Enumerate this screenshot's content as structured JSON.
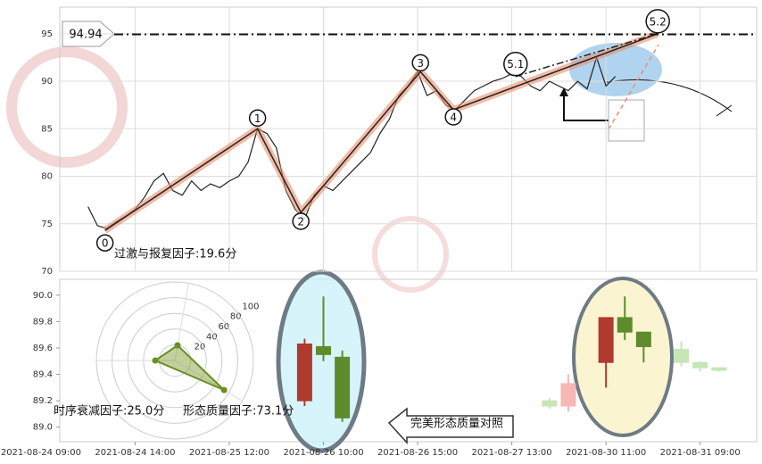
{
  "chart_data": [
    {
      "type": "line",
      "color": "#222222",
      "x": [
        5,
        6,
        7,
        8,
        9,
        10,
        11,
        12,
        13,
        14,
        15,
        16,
        17,
        18,
        19,
        20,
        21,
        22,
        23,
        24,
        25,
        26,
        27,
        28,
        29,
        30,
        31,
        32,
        33,
        34,
        35,
        36,
        37,
        38,
        39,
        40,
        41,
        42,
        43,
        44,
        45,
        46,
        47,
        48,
        49,
        50,
        51,
        52,
        53,
        54,
        55,
        56,
        57,
        58,
        59,
        60,
        61
      ],
      "values": [
        76.8,
        74.8,
        74.5,
        75.2,
        75.8,
        76.5,
        77.8,
        79.5,
        80.3,
        78.5,
        78.0,
        79.5,
        78.5,
        79.2,
        78.8,
        79.5,
        80.0,
        81.5,
        85.0,
        84.5,
        83.0,
        78.5,
        76.5,
        75.5,
        78.0,
        79.0,
        78.5,
        79.5,
        80.5,
        81.5,
        82.5,
        84.5,
        86.0,
        88.5,
        89.5,
        91.0,
        88.5,
        89.0,
        87.5,
        87.0,
        88.0,
        89.0,
        89.5,
        90.0,
        90.3,
        90.8,
        90.5,
        89.5,
        89.0,
        90.0,
        89.5,
        89.0,
        90.0,
        89.2,
        92.5,
        89.5,
        90.5
      ],
      "xlim": [
        2,
        76
      ],
      "ylim": [
        70,
        97.8
      ],
      "yticks": [
        70,
        75,
        80,
        85,
        90,
        95
      ],
      "grid": true,
      "hline": 94.94,
      "waves": {
        "labels": [
          "0",
          "1",
          "2",
          "3",
          "4",
          "5.1",
          "5.2"
        ],
        "x": [
          6.8,
          23,
          27.6,
          40.3,
          43.8,
          50.4,
          65.5
        ],
        "y": [
          74.3,
          85.0,
          76.2,
          91.0,
          87.0,
          90.5,
          95.0
        ],
        "color": "#e8906c"
      }
    },
    {
      "type": "candlestick",
      "x": [
        28,
        30,
        32,
        54,
        56,
        60,
        62,
        64,
        68,
        70,
        72
      ],
      "open": [
        89.2,
        89.55,
        89.53,
        89.16,
        89.16,
        89.49,
        89.72,
        89.61,
        89.49,
        89.45,
        89.43
      ],
      "high": [
        89.67,
        89.99,
        89.58,
        89.22,
        89.4,
        89.83,
        89.99,
        89.72,
        89.65,
        89.5,
        89.45
      ],
      "low": [
        89.16,
        89.5,
        89.04,
        89.14,
        89.12,
        89.3,
        89.66,
        89.49,
        89.46,
        89.42,
        89.42
      ],
      "close": [
        89.63,
        89.61,
        89.07,
        89.2,
        89.33,
        89.83,
        89.83,
        89.72,
        89.59,
        89.49,
        89.45
      ],
      "colors": [
        "#b03a2e",
        "#5e8c2c",
        "#5e8c2c",
        "#c6e6b6",
        "#f5b8b4",
        "#b03a2e",
        "#5e8c2c",
        "#5e8c2c",
        "#c6e6b6",
        "#c6e6b6",
        "#c6e6b6"
      ],
      "xlim": [
        2,
        76
      ],
      "ylim": [
        88.89,
        90.12
      ],
      "yticks": [
        {
          "value": 89.0,
          "label": "89.0"
        },
        {
          "value": 89.2,
          "label": "89.2"
        },
        {
          "value": 89.4,
          "label": "89.4"
        },
        {
          "value": 89.6,
          "label": "89.6"
        },
        {
          "value": 89.8,
          "label": "89.8"
        },
        {
          "value": 90.0,
          "label": "90.0"
        }
      ],
      "xticks": [
        {
          "value": 0,
          "label": "2021-08-24 09:00"
        },
        {
          "value": 10,
          "label": "2021-08-24 14:00"
        },
        {
          "value": 20,
          "label": "2021-08-25 12:00"
        },
        {
          "value": 30,
          "label": "2021-08-26 10:00"
        },
        {
          "value": 40,
          "label": "2021-08-26 15:00"
        },
        {
          "value": 50,
          "label": "2021-08-27 13:00"
        },
        {
          "value": 60,
          "label": "2021-08-30 11:00"
        },
        {
          "value": 70,
          "label": "2021-08-31 09:00"
        }
      ],
      "annotation": "完美形态质量对照"
    },
    {
      "type": "radar",
      "color": "#6b8e23",
      "values": [
        19.6,
        25.0,
        73.1
      ],
      "value_labels": [
        "过激与报复因子:19.6分",
        "时序衰减因子:25.0分",
        "形态质量因子:73.1分"
      ],
      "rlim": [
        0,
        100
      ],
      "rticks": [
        20,
        40,
        60,
        80,
        100
      ]
    }
  ]
}
